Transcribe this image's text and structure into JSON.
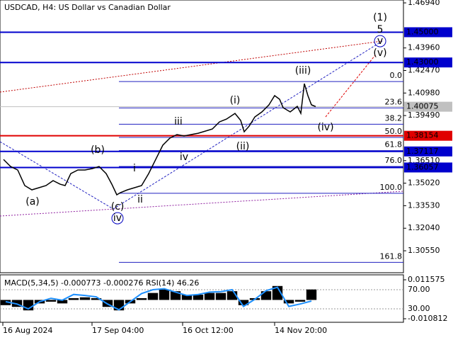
{
  "chart_data": [
    {
      "type": "line",
      "title": "USDCAD, H4:  US Dollar vs Canadian Dollar",
      "color": "#000000",
      "x": [
        1.25,
        3.75,
        6.25,
        8.75,
        11.25,
        13.75,
        16.25,
        18.75,
        21.25,
        23,
        25,
        27.5,
        30,
        32.5,
        35,
        37.5,
        39.5,
        41.25,
        42.5,
        45,
        47.5,
        50,
        52.5,
        55,
        57.5,
        60,
        62.5,
        65,
        67.5,
        70,
        72.5,
        75,
        77.5,
        80,
        83,
        85,
        86.25,
        88,
        90,
        92.5,
        95,
        97,
        98.75,
        100,
        102.5,
        105,
        106.25,
        107.5,
        108.75,
        110,
        111.5
      ],
      "values": [
        1.3659,
        1.3612,
        1.3589,
        1.3486,
        1.3458,
        1.3472,
        1.3486,
        1.3519,
        1.3495,
        1.3486,
        1.3565,
        1.3589,
        1.3589,
        1.3598,
        1.3612,
        1.3565,
        1.3495,
        1.3425,
        1.3439,
        1.3458,
        1.3472,
        1.3486,
        1.3565,
        1.3659,
        1.3753,
        1.38,
        1.3823,
        1.3814,
        1.3823,
        1.3832,
        1.3846,
        1.386,
        1.3907,
        1.3926,
        1.3963,
        1.3917,
        1.3842,
        1.3879,
        1.394,
        1.3973,
        1.402,
        1.4081,
        1.4057,
        1.4001,
        1.3973,
        1.401,
        1.3963,
        1.416,
        1.4081,
        1.402,
        1.4008
      ],
      "xlim": [
        0,
        142.5
      ],
      "xticks": [
        {
          "value": 1,
          "label": "16 Aug 2024"
        },
        {
          "value": 32.5,
          "label": "17 Sep 04:00"
        },
        {
          "value": 64.5,
          "label": "16 Oct 12:00"
        },
        {
          "value": 97,
          "label": "14 Nov 20:00"
        }
      ],
      "ylim": [
        1.291,
        1.4713
      ],
      "yticks": [
        {
          "value": 1.4694,
          "label": "1.46940"
        },
        {
          "value": 1.4396,
          "label": "1.43960"
        },
        {
          "value": 1.4247,
          "label": "1.42470"
        },
        {
          "value": 1.4098,
          "label": "1.40980"
        },
        {
          "value": 1.3949,
          "label": "1.39490"
        },
        {
          "value": 1.3651,
          "label": "1.36510"
        },
        {
          "value": 1.3502,
          "label": "1.35020"
        },
        {
          "value": 1.3353,
          "label": "1.33530"
        },
        {
          "value": 1.3204,
          "label": "1.32040"
        },
        {
          "value": 1.3055,
          "label": "1.30550"
        }
      ],
      "levels": [
        {
          "value": 1.45,
          "label": "1.45000",
          "color": "#0000cd"
        },
        {
          "value": 1.43,
          "label": "1.43000",
          "color": "#0000cd"
        },
        {
          "value": 1.40075,
          "color": "#c0c0c0"
        },
        {
          "value": 1.38154,
          "color": "#e00000"
        },
        {
          "value": 1.37117,
          "color": "#0000cd"
        },
        {
          "value": 1.36057,
          "color": "#0000cd"
        }
      ],
      "fib": {
        "levels": [
          {
            "value": 0,
            "label": "0.0"
          },
          23.6,
          38.2,
          {
            "value": 50,
            "label": "50.0"
          },
          61.8,
          {
            "value": 76,
            "label": "76.0"
          },
          {
            "value": 100,
            "label": "100.0"
          },
          161.8
        ],
        "price_0": 1.4174,
        "price_100": 1.3435,
        "color": "#2020c0"
      },
      "annotations": [
        {
          "text": "(1)",
          "color": "#008000",
          "x": 134.25,
          "y": 1.4596
        },
        {
          "text": "5",
          "color": "#c00000",
          "x": 134.25,
          "y": 1.4516
        },
        {
          "text": "v",
          "color": "#0000c0",
          "x": 134.25,
          "y": 1.4441,
          "circled": true
        },
        {
          "text": "(v)",
          "color": "#c00000",
          "x": 134.25,
          "y": 1.4362
        },
        {
          "text": "(iii)",
          "color": "#c00000",
          "x": 107,
          "y": 1.4245
        },
        {
          "text": "(i)",
          "color": "#c00000",
          "x": 83,
          "y": 1.4048
        },
        {
          "text": "(ii)",
          "color": "#c00000",
          "x": 85.75,
          "y": 1.3743
        },
        {
          "text": "(iv)",
          "color": "#c00000",
          "x": 115,
          "y": 1.387
        },
        {
          "text": "iii",
          "color": "#707070",
          "x": 63,
          "y": 1.3907
        },
        {
          "text": "iv",
          "color": "#707070",
          "x": 65,
          "y": 1.3673
        },
        {
          "text": "i",
          "color": "#707070",
          "x": 47.5,
          "y": 1.3598
        },
        {
          "text": "ii",
          "color": "#707070",
          "x": 49.5,
          "y": 1.3392
        },
        {
          "text": "(a)",
          "color": "#c00000",
          "x": 11.5,
          "y": 1.3378
        },
        {
          "text": "(b)",
          "color": "#c00000",
          "x": 34.5,
          "y": 1.372
        },
        {
          "text": "(c)",
          "color": "#c00000",
          "x": 41.5,
          "y": 1.3345
        },
        {
          "text": "iv",
          "color": "#0000c0",
          "x": 41.5,
          "y": 1.327,
          "circled": true
        }
      ]
    },
    {
      "type": "macd",
      "label": "MACD(5,34,5) -0.000773 -0.000276 RSI(14) 46.26",
      "x": [
        2,
        6,
        10,
        14,
        18,
        22,
        26,
        30,
        34,
        38,
        42,
        46,
        50,
        54,
        58,
        62,
        66,
        70,
        74,
        78,
        82,
        86,
        90,
        94,
        98,
        102,
        106,
        110
      ],
      "histogram": {
        "color": "#000000",
        "values": [
          -0.003,
          -0.004,
          -0.006,
          -0.002,
          -0.001,
          -0.002,
          0.001,
          0.0015,
          0.001,
          -0.004,
          -0.006,
          -0.002,
          0.001,
          0.004,
          0.006,
          0.005,
          0.003,
          0.003,
          0.004,
          0.004,
          0.005,
          -0.003,
          0.001,
          0.005,
          0.008,
          -0.002,
          -0.001,
          0.006
        ]
      },
      "rsi": {
        "color": "#1e90ff",
        "axis": "y2",
        "values": [
          45,
          40,
          30,
          45,
          52,
          48,
          60,
          58,
          55,
          40,
          28,
          45,
          62,
          70,
          72,
          65,
          58,
          60,
          65,
          66,
          70,
          35,
          50,
          68,
          75,
          35,
          40,
          46.26
        ]
      },
      "ylim": [
        -0.01285,
        0.01442
      ],
      "yticks": [
        0.011575,
        -0.010812
      ],
      "y2lim": [
        1.85,
        101.1
      ],
      "y2ticks": [
        {
          "value": 70,
          "label": "70.00"
        },
        {
          "value": 30,
          "label": "30.00"
        }
      ]
    }
  ]
}
